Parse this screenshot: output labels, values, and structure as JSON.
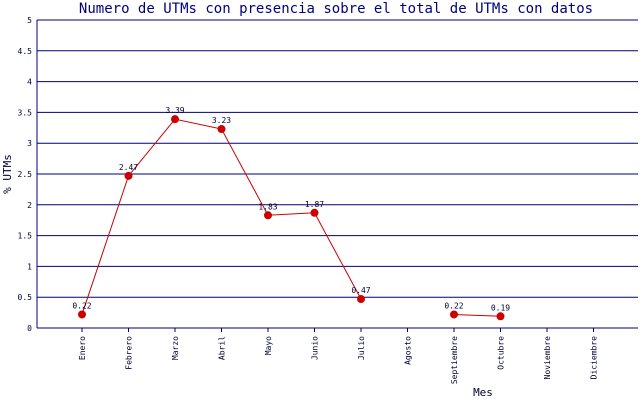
{
  "chart_data": {
    "type": "line",
    "title": "Numero de UTMs con presencia sobre el total de UTMs con datos",
    "x_label": "Mes",
    "y_label": "% UTMs",
    "categories": [
      "Enero",
      "Febrero",
      "Marzo",
      "Abril",
      "Mayo",
      "Junio",
      "Julio",
      "Agosto",
      "Septiembre",
      "Octubre",
      "Noviembre",
      "Diciembre"
    ],
    "series": [
      {
        "name": "% UTMs",
        "color": "#cc0000",
        "values": [
          0.22,
          2.47,
          3.39,
          3.23,
          1.83,
          1.87,
          0.47,
          null,
          0.22,
          0.19,
          null,
          null
        ]
      }
    ],
    "ylim": [
      0,
      5
    ],
    "yticks": [
      0,
      0.5,
      1,
      1.5,
      2,
      2.5,
      3,
      3.5,
      4,
      4.5,
      5
    ],
    "grid": true,
    "grid_color": "#000080"
  }
}
